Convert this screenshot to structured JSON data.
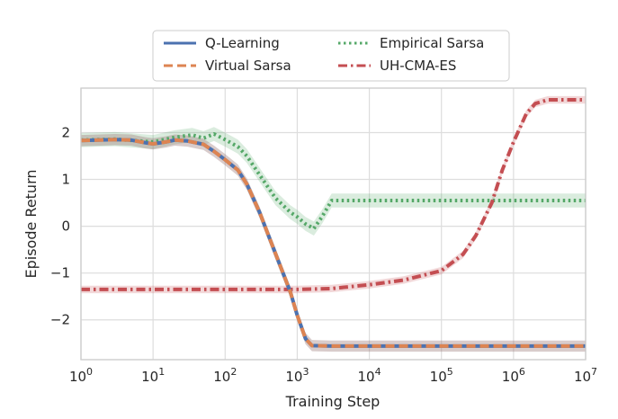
{
  "chart_data": {
    "type": "line",
    "xlabel": "Training Step",
    "ylabel": "Episode Return",
    "x_scale": "log",
    "xlim": [
      1,
      10000000
    ],
    "ylim": [
      -2.85,
      2.95
    ],
    "x_ticks": [
      {
        "value": 1,
        "base": "10",
        "exp": "0"
      },
      {
        "value": 10,
        "base": "10",
        "exp": "1"
      },
      {
        "value": 100,
        "base": "10",
        "exp": "2"
      },
      {
        "value": 1000,
        "base": "10",
        "exp": "3"
      },
      {
        "value": 10000,
        "base": "10",
        "exp": "4"
      },
      {
        "value": 100000,
        "base": "10",
        "exp": "5"
      },
      {
        "value": 1000000,
        "base": "10",
        "exp": "6"
      },
      {
        "value": 10000000,
        "base": "10",
        "exp": "7"
      }
    ],
    "y_ticks": [
      {
        "value": 2,
        "label": "2"
      },
      {
        "value": 1,
        "label": "1"
      },
      {
        "value": 0,
        "label": "0"
      },
      {
        "value": -1,
        "label": "−1"
      },
      {
        "value": -2,
        "label": "−2"
      }
    ],
    "grid": true,
    "legend": {
      "position": "top-center",
      "columns": 2
    },
    "series": [
      {
        "name": "Q-Learning",
        "color": "#4c72b0",
        "style": "solid",
        "band": 0.12,
        "points": [
          [
            1,
            1.83
          ],
          [
            3,
            1.85
          ],
          [
            5,
            1.84
          ],
          [
            8,
            1.78
          ],
          [
            10,
            1.76
          ],
          [
            15,
            1.8
          ],
          [
            20,
            1.84
          ],
          [
            30,
            1.82
          ],
          [
            40,
            1.78
          ],
          [
            50,
            1.75
          ],
          [
            70,
            1.6
          ],
          [
            100,
            1.42
          ],
          [
            150,
            1.2
          ],
          [
            200,
            0.9
          ],
          [
            300,
            0.3
          ],
          [
            400,
            -0.2
          ],
          [
            600,
            -0.9
          ],
          [
            800,
            -1.4
          ],
          [
            1000,
            -1.9
          ],
          [
            1300,
            -2.4
          ],
          [
            1600,
            -2.55
          ],
          [
            3000,
            -2.56
          ],
          [
            10000000,
            -2.56
          ]
        ]
      },
      {
        "name": "Virtual Sarsa",
        "color": "#dd8452",
        "style": "dashed",
        "band": 0.12,
        "points": [
          [
            1,
            1.83
          ],
          [
            3,
            1.85
          ],
          [
            5,
            1.84
          ],
          [
            8,
            1.78
          ],
          [
            10,
            1.76
          ],
          [
            15,
            1.8
          ],
          [
            20,
            1.84
          ],
          [
            30,
            1.82
          ],
          [
            40,
            1.78
          ],
          [
            50,
            1.75
          ],
          [
            70,
            1.6
          ],
          [
            100,
            1.42
          ],
          [
            150,
            1.2
          ],
          [
            200,
            0.9
          ],
          [
            300,
            0.3
          ],
          [
            400,
            -0.2
          ],
          [
            600,
            -0.9
          ],
          [
            800,
            -1.4
          ],
          [
            1000,
            -1.9
          ],
          [
            1300,
            -2.4
          ],
          [
            1600,
            -2.55
          ],
          [
            3000,
            -2.56
          ],
          [
            10000000,
            -2.56
          ]
        ]
      },
      {
        "name": "Empirical Sarsa",
        "color": "#55a868",
        "style": "dotted",
        "band": 0.15,
        "points": [
          [
            1,
            1.84
          ],
          [
            3,
            1.86
          ],
          [
            10,
            1.8
          ],
          [
            20,
            1.9
          ],
          [
            35,
            1.95
          ],
          [
            50,
            1.88
          ],
          [
            70,
            1.97
          ],
          [
            100,
            1.85
          ],
          [
            150,
            1.7
          ],
          [
            200,
            1.5
          ],
          [
            300,
            1.1
          ],
          [
            500,
            0.6
          ],
          [
            800,
            0.3
          ],
          [
            1000,
            0.2
          ],
          [
            1300,
            0.05
          ],
          [
            1700,
            -0.05
          ],
          [
            2200,
            0.2
          ],
          [
            3000,
            0.55
          ],
          [
            10000000,
            0.55
          ]
        ]
      },
      {
        "name": "UH-CMA-ES",
        "color": "#c44e52",
        "style": "dashdot",
        "band": 0.08,
        "points": [
          [
            1,
            -1.35
          ],
          [
            1000,
            -1.35
          ],
          [
            3000,
            -1.33
          ],
          [
            10000,
            -1.25
          ],
          [
            30000,
            -1.15
          ],
          [
            100000,
            -0.95
          ],
          [
            200000,
            -0.6
          ],
          [
            300000,
            -0.2
          ],
          [
            500000,
            0.5
          ],
          [
            700000,
            1.2
          ],
          [
            1000000,
            1.8
          ],
          [
            1500000,
            2.4
          ],
          [
            2000000,
            2.62
          ],
          [
            3000000,
            2.7
          ],
          [
            10000000,
            2.7
          ]
        ]
      }
    ]
  }
}
